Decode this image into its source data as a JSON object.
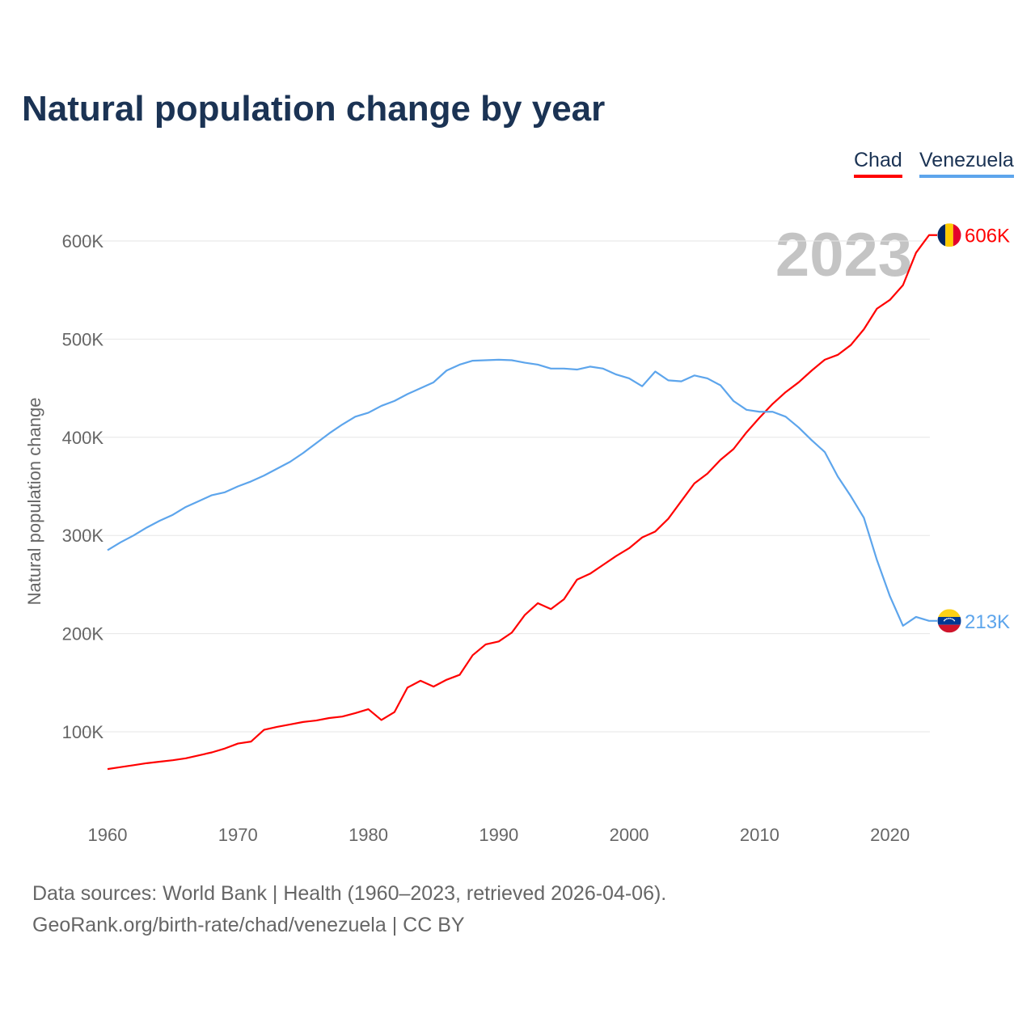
{
  "title": "Natural population change by year",
  "footer": {
    "line1": "Data sources: World Bank | Health (1960–2023, retrieved 2026-04-06).",
    "line2": "GeoRank.org/birth-rate/chad/venezuela | CC BY"
  },
  "chart_data": {
    "type": "line",
    "title": "Natural population change by year",
    "xlabel": "",
    "ylabel": "Natural population change",
    "year_watermark": "2023",
    "xlim": [
      1960,
      2023
    ],
    "ylim": [
      0,
      650000
    ],
    "x_ticks": [
      "1960",
      "1970",
      "1980",
      "1990",
      "2000",
      "2010",
      "2020"
    ],
    "y_ticks": [
      {
        "value": 100000,
        "label": "100K"
      },
      {
        "value": 200000,
        "label": "200K"
      },
      {
        "value": 300000,
        "label": "300K"
      },
      {
        "value": 400000,
        "label": "400K"
      },
      {
        "value": 500000,
        "label": "500K"
      },
      {
        "value": 600000,
        "label": "600K"
      }
    ],
    "grid": true,
    "legend_position": "top-right",
    "x": [
      1960,
      1961,
      1962,
      1963,
      1964,
      1965,
      1966,
      1967,
      1968,
      1969,
      1970,
      1971,
      1972,
      1973,
      1974,
      1975,
      1976,
      1977,
      1978,
      1979,
      1980,
      1981,
      1982,
      1983,
      1984,
      1985,
      1986,
      1987,
      1988,
      1989,
      1990,
      1991,
      1992,
      1993,
      1994,
      1995,
      1996,
      1997,
      1998,
      1999,
      2000,
      2001,
      2002,
      2003,
      2004,
      2005,
      2006,
      2007,
      2008,
      2009,
      2010,
      2011,
      2012,
      2013,
      2014,
      2015,
      2016,
      2017,
      2018,
      2019,
      2020,
      2021,
      2022,
      2023
    ],
    "series": [
      {
        "name": "Chad",
        "color": "#ff0000",
        "end_label": "606K",
        "flag": "chad-flag",
        "values": [
          62000,
          64000,
          66000,
          68000,
          69500,
          71000,
          73000,
          76000,
          79000,
          83000,
          88000,
          90000,
          102000,
          105000,
          107500,
          110000,
          111500,
          114000,
          115500,
          119000,
          123000,
          112000,
          120000,
          145000,
          152000,
          146000,
          153000,
          158000,
          178000,
          189000,
          192000,
          201000,
          219000,
          231000,
          225000,
          235000,
          255000,
          261000,
          270000,
          279000,
          287000,
          298000,
          304000,
          317000,
          335000,
          353000,
          363000,
          377000,
          388000,
          405000,
          420000,
          434000,
          446000,
          456000,
          468000,
          479000,
          484000,
          494000,
          510000,
          531000,
          540000,
          555000,
          588000,
          606000
        ]
      },
      {
        "name": "Venezuela",
        "color": "#5da5ec",
        "end_label": "213K",
        "flag": "venezuela-flag",
        "values": [
          285000,
          293000,
          300000,
          308000,
          315000,
          321000,
          329000,
          335000,
          341000,
          344000,
          350000,
          355000,
          361000,
          368000,
          375000,
          384000,
          394000,
          404000,
          413000,
          421000,
          425000,
          432000,
          437000,
          444000,
          450000,
          456000,
          468000,
          474000,
          478000,
          478500,
          479000,
          478500,
          476000,
          474000,
          470000,
          470000,
          469000,
          472000,
          470000,
          464000,
          460000,
          452000,
          467000,
          458000,
          457000,
          463000,
          460000,
          453000,
          437000,
          428000,
          426000,
          426000,
          421000,
          410000,
          397000,
          385000,
          360000,
          340000,
          318000,
          275000,
          238000,
          208000,
          217000,
          213000
        ]
      }
    ]
  }
}
